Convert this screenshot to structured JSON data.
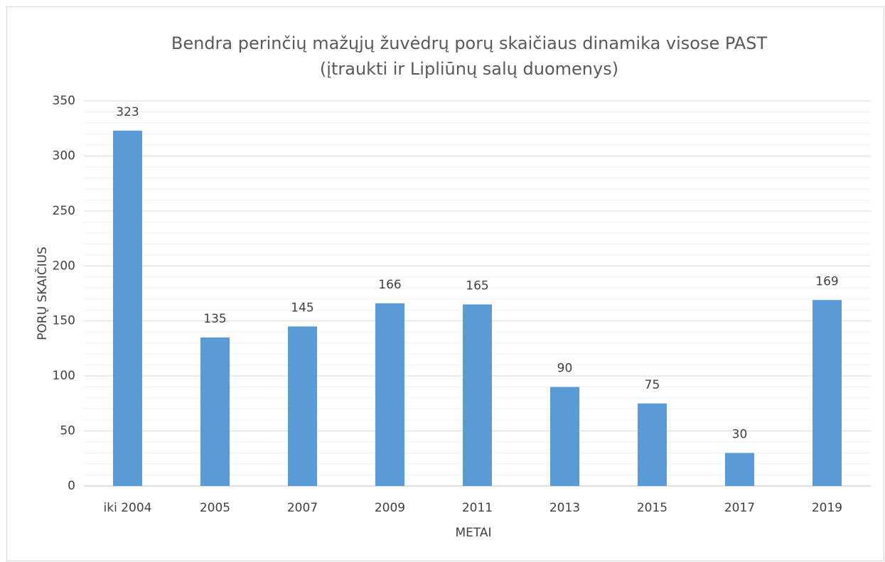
{
  "chart_data": {
    "type": "bar",
    "title": [
      "Bendra perinčių mažųjų žuvėdrų porų skaičiaus dinamika visose PAST",
      "(įtraukti ir Lipliūnų salų duomenys)"
    ],
    "x_label": "METAI",
    "y_label": "PORŲ SKAIČIUS",
    "categories": [
      "iki 2004",
      "2005",
      "2007",
      "2009",
      "2011",
      "2013",
      "2015",
      "2017",
      "2019"
    ],
    "values": [
      323,
      135,
      145,
      166,
      165,
      90,
      75,
      30,
      169
    ],
    "color": "#5b9bd5",
    "ylim": [
      0,
      350
    ],
    "yticks": [
      0,
      50,
      100,
      150,
      200,
      250,
      300,
      350
    ],
    "grid": true,
    "minor_grid": true
  }
}
